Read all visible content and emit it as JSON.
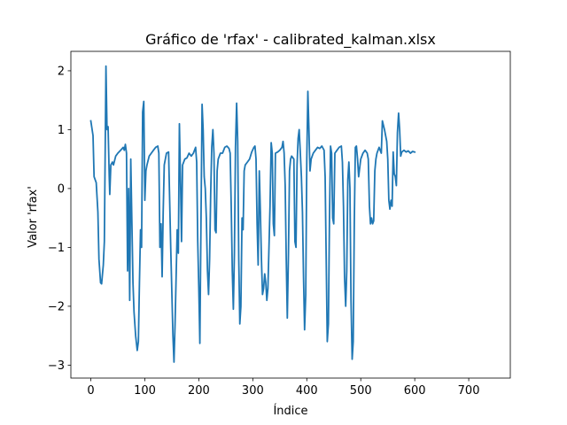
{
  "chart_data": {
    "type": "line",
    "title": "Gráfico de 'rfax' - calibrated_kalman.xlsx",
    "xlabel": "Índice",
    "ylabel": "Valor 'rfax'",
    "xlim": [
      -37,
      777
    ],
    "ylim": [
      -3.22,
      2.33
    ],
    "xticks": [
      0,
      100,
      200,
      300,
      400,
      500,
      600,
      700
    ],
    "yticks": [
      -3,
      -2,
      -1,
      0,
      1,
      2
    ],
    "grid": false,
    "legend": "none",
    "series": [
      {
        "color": "#1f77b4",
        "points": [
          [
            0,
            1.15
          ],
          [
            4,
            0.9
          ],
          [
            6,
            0.2
          ],
          [
            10,
            0.1
          ],
          [
            13,
            -0.4
          ],
          [
            15,
            -1.2
          ],
          [
            18,
            -1.6
          ],
          [
            20,
            -1.62
          ],
          [
            23,
            -1.3
          ],
          [
            25,
            -0.9
          ],
          [
            28,
            2.08
          ],
          [
            30,
            1.0
          ],
          [
            32,
            1.05
          ],
          [
            34,
            0.2
          ],
          [
            35,
            -0.1
          ],
          [
            37,
            0.4
          ],
          [
            40,
            0.45
          ],
          [
            42,
            0.4
          ],
          [
            46,
            0.55
          ],
          [
            50,
            0.6
          ],
          [
            55,
            0.65
          ],
          [
            60,
            0.7
          ],
          [
            62,
            0.65
          ],
          [
            64,
            0.75
          ],
          [
            66,
            0.6
          ],
          [
            68,
            -1.4
          ],
          [
            70,
            0.0
          ],
          [
            72,
            -1.9
          ],
          [
            74,
            0.5
          ],
          [
            76,
            -0.6
          ],
          [
            78,
            -1.6
          ],
          [
            80,
            -2.1
          ],
          [
            83,
            -2.5
          ],
          [
            86,
            -2.75
          ],
          [
            88,
            -2.6
          ],
          [
            90,
            -1.6
          ],
          [
            92,
            -0.7
          ],
          [
            94,
            -1.0
          ],
          [
            96,
            1.3
          ],
          [
            98,
            1.48
          ],
          [
            100,
            -0.2
          ],
          [
            102,
            0.3
          ],
          [
            104,
            0.4
          ],
          [
            108,
            0.55
          ],
          [
            112,
            0.6
          ],
          [
            116,
            0.65
          ],
          [
            120,
            0.7
          ],
          [
            124,
            0.72
          ],
          [
            126,
            0.6
          ],
          [
            128,
            -1.0
          ],
          [
            130,
            -0.6
          ],
          [
            132,
            -1.5
          ],
          [
            134,
            -0.4
          ],
          [
            136,
            0.4
          ],
          [
            140,
            0.6
          ],
          [
            144,
            0.62
          ],
          [
            148,
            -1.0
          ],
          [
            152,
            -2.5
          ],
          [
            154,
            -2.95
          ],
          [
            156,
            -2.3
          ],
          [
            158,
            -1.5
          ],
          [
            160,
            -0.7
          ],
          [
            162,
            -1.1
          ],
          [
            164,
            1.1
          ],
          [
            166,
            0.2
          ],
          [
            168,
            -0.9
          ],
          [
            170,
            0.4
          ],
          [
            174,
            0.5
          ],
          [
            178,
            0.52
          ],
          [
            182,
            0.6
          ],
          [
            186,
            0.55
          ],
          [
            190,
            0.6
          ],
          [
            194,
            0.7
          ],
          [
            196,
            0.45
          ],
          [
            198,
            -0.9
          ],
          [
            200,
            -1.7
          ],
          [
            202,
            -2.63
          ],
          [
            204,
            -0.5
          ],
          [
            206,
            1.43
          ],
          [
            208,
            1.0
          ],
          [
            210,
            0.2
          ],
          [
            212,
            0.0
          ],
          [
            214,
            -0.5
          ],
          [
            216,
            -1.4
          ],
          [
            218,
            -1.8
          ],
          [
            220,
            -1.2
          ],
          [
            222,
            -0.1
          ],
          [
            224,
            0.7
          ],
          [
            226,
            1.0
          ],
          [
            228,
            0.6
          ],
          [
            230,
            -0.7
          ],
          [
            232,
            -0.75
          ],
          [
            234,
            0.3
          ],
          [
            236,
            0.5
          ],
          [
            240,
            0.6
          ],
          [
            244,
            0.6
          ],
          [
            248,
            0.7
          ],
          [
            252,
            0.72
          ],
          [
            256,
            0.68
          ],
          [
            258,
            0.6
          ],
          [
            260,
            -0.3
          ],
          [
            262,
            -1.4
          ],
          [
            264,
            -2.05
          ],
          [
            266,
            -1.1
          ],
          [
            268,
            0.7
          ],
          [
            270,
            1.45
          ],
          [
            272,
            0.8
          ],
          [
            274,
            -1.2
          ],
          [
            276,
            -2.3
          ],
          [
            278,
            -2.0
          ],
          [
            280,
            -0.5
          ],
          [
            282,
            -0.7
          ],
          [
            284,
            0.3
          ],
          [
            286,
            0.4
          ],
          [
            290,
            0.45
          ],
          [
            294,
            0.5
          ],
          [
            298,
            0.62
          ],
          [
            302,
            0.7
          ],
          [
            304,
            0.72
          ],
          [
            306,
            0.5
          ],
          [
            308,
            -0.6
          ],
          [
            310,
            -1.3
          ],
          [
            312,
            0.3
          ],
          [
            314,
            -0.4
          ],
          [
            316,
            -1.2
          ],
          [
            318,
            -1.8
          ],
          [
            320,
            -1.7
          ],
          [
            322,
            -1.45
          ],
          [
            324,
            -1.6
          ],
          [
            326,
            -1.9
          ],
          [
            328,
            -1.7
          ],
          [
            330,
            -1.0
          ],
          [
            332,
            -0.3
          ],
          [
            334,
            0.78
          ],
          [
            336,
            0.6
          ],
          [
            338,
            -0.6
          ],
          [
            340,
            -0.8
          ],
          [
            342,
            0.6
          ],
          [
            346,
            0.62
          ],
          [
            350,
            0.65
          ],
          [
            354,
            0.7
          ],
          [
            356,
            0.8
          ],
          [
            358,
            0.6
          ],
          [
            360,
            0.05
          ],
          [
            362,
            -1.2
          ],
          [
            364,
            -2.2
          ],
          [
            366,
            -1.1
          ],
          [
            368,
            0.3
          ],
          [
            370,
            0.5
          ],
          [
            372,
            0.55
          ],
          [
            376,
            0.5
          ],
          [
            378,
            -0.9
          ],
          [
            380,
            -1.0
          ],
          [
            382,
            0.4
          ],
          [
            384,
            0.85
          ],
          [
            386,
            1.0
          ],
          [
            388,
            0.6
          ],
          [
            390,
            0.2
          ],
          [
            392,
            -0.4
          ],
          [
            394,
            -1.5
          ],
          [
            396,
            -2.4
          ],
          [
            398,
            -1.8
          ],
          [
            400,
            0.5
          ],
          [
            402,
            1.65
          ],
          [
            404,
            1.0
          ],
          [
            406,
            0.3
          ],
          [
            408,
            0.5
          ],
          [
            412,
            0.6
          ],
          [
            416,
            0.65
          ],
          [
            420,
            0.7
          ],
          [
            424,
            0.68
          ],
          [
            428,
            0.72
          ],
          [
            432,
            0.65
          ],
          [
            434,
            0.2
          ],
          [
            436,
            -1.2
          ],
          [
            438,
            -2.6
          ],
          [
            440,
            -2.3
          ],
          [
            442,
            -0.5
          ],
          [
            444,
            0.72
          ],
          [
            446,
            0.6
          ],
          [
            448,
            -0.5
          ],
          [
            450,
            -0.6
          ],
          [
            452,
            0.6
          ],
          [
            456,
            0.65
          ],
          [
            460,
            0.7
          ],
          [
            464,
            0.72
          ],
          [
            466,
            0.45
          ],
          [
            468,
            -0.3
          ],
          [
            470,
            -1.5
          ],
          [
            472,
            -2.0
          ],
          [
            474,
            -1.4
          ],
          [
            476,
            0.15
          ],
          [
            478,
            0.45
          ],
          [
            480,
            0.0
          ],
          [
            482,
            -1.9
          ],
          [
            484,
            -2.9
          ],
          [
            486,
            -2.6
          ],
          [
            488,
            -0.6
          ],
          [
            490,
            0.7
          ],
          [
            492,
            0.72
          ],
          [
            494,
            0.5
          ],
          [
            496,
            0.2
          ],
          [
            500,
            0.5
          ],
          [
            504,
            0.6
          ],
          [
            508,
            0.65
          ],
          [
            512,
            0.6
          ],
          [
            514,
            0.5
          ],
          [
            516,
            -0.3
          ],
          [
            518,
            -0.6
          ],
          [
            520,
            -0.5
          ],
          [
            522,
            -0.6
          ],
          [
            524,
            -0.55
          ],
          [
            526,
            0.3
          ],
          [
            528,
            0.5
          ],
          [
            530,
            0.6
          ],
          [
            534,
            0.7
          ],
          [
            538,
            0.6
          ],
          [
            540,
            1.15
          ],
          [
            544,
            1.0
          ],
          [
            548,
            0.8
          ],
          [
            550,
            0.5
          ],
          [
            552,
            -0.2
          ],
          [
            554,
            -0.35
          ],
          [
            556,
            -0.2
          ],
          [
            558,
            -0.3
          ],
          [
            560,
            0.62
          ],
          [
            562,
            0.25
          ],
          [
            564,
            0.2
          ],
          [
            566,
            0.05
          ],
          [
            568,
            0.95
          ],
          [
            570,
            1.28
          ],
          [
            572,
            1.0
          ],
          [
            574,
            0.55
          ],
          [
            576,
            0.62
          ],
          [
            580,
            0.65
          ],
          [
            584,
            0.62
          ],
          [
            588,
            0.64
          ],
          [
            592,
            0.6
          ],
          [
            596,
            0.63
          ],
          [
            600,
            0.62
          ]
        ]
      }
    ]
  }
}
